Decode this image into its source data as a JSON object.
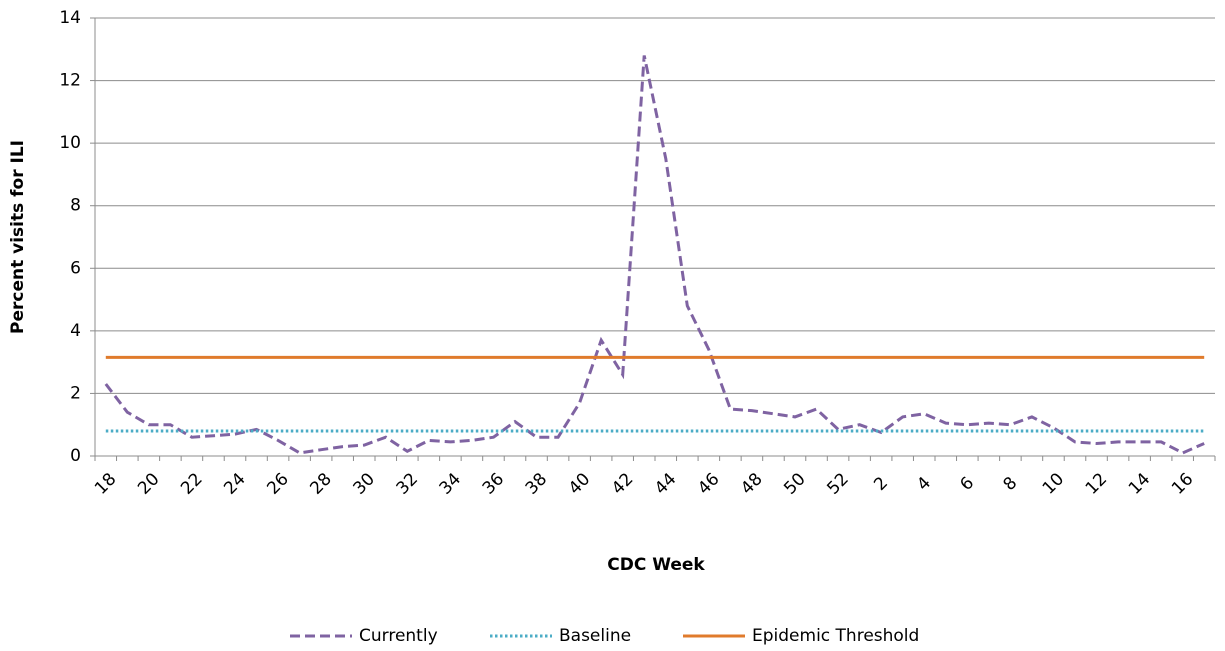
{
  "chart_data": {
    "type": "line",
    "y_label": "Percent visits for ILI",
    "x_label": "CDC Week",
    "categories": [
      "18",
      null,
      "20",
      null,
      "22",
      null,
      "24",
      null,
      "26",
      null,
      "28",
      null,
      "30",
      null,
      "32",
      null,
      "34",
      null,
      "36",
      null,
      "38",
      null,
      "40",
      null,
      "42",
      null,
      "44",
      null,
      "46",
      null,
      "48",
      null,
      "50",
      null,
      "52",
      null,
      "2",
      null,
      "4",
      null,
      "6",
      null,
      "8",
      null,
      "10",
      null,
      "12",
      null,
      "14",
      null,
      "16",
      null
    ],
    "series": [
      {
        "name": "Currently",
        "color": "#7f63a2",
        "style": "dashed",
        "values": [
          2.3,
          1.4,
          1.0,
          1.0,
          0.6,
          0.65,
          0.7,
          0.85,
          0.5,
          0.1,
          0.2,
          0.3,
          0.35,
          0.6,
          0.15,
          0.5,
          0.45,
          0.5,
          0.6,
          1.1,
          0.6,
          0.6,
          1.7,
          3.7,
          2.6,
          12.8,
          9.5,
          4.8,
          3.4,
          1.5,
          1.45,
          1.35,
          1.25,
          1.5,
          0.85,
          1.0,
          0.75,
          1.25,
          1.35,
          1.05,
          1.0,
          1.05,
          1.0,
          1.25,
          0.9,
          0.45,
          0.4,
          0.45,
          0.45,
          0.45,
          0.1,
          0.4
        ]
      },
      {
        "name": "Baseline",
        "color": "#4bacc6",
        "style": "dotted",
        "values": [
          0.8,
          0.8,
          0.8,
          0.8,
          0.8,
          0.8,
          0.8,
          0.8,
          0.8,
          0.8,
          0.8,
          0.8,
          0.8,
          0.8,
          0.8,
          0.8,
          0.8,
          0.8,
          0.8,
          0.8,
          0.8,
          0.8,
          0.8,
          0.8,
          0.8,
          0.8,
          0.8,
          0.8,
          0.8,
          0.8,
          0.8,
          0.8,
          0.8,
          0.8,
          0.8,
          0.8,
          0.8,
          0.8,
          0.8,
          0.8,
          0.8,
          0.8,
          0.8,
          0.8,
          0.8,
          0.8,
          0.8,
          0.8,
          0.8,
          0.8,
          0.8,
          0.8
        ]
      },
      {
        "name": "Epidemic Threshold",
        "color": "#e07b2c",
        "style": "solid",
        "values": [
          3.15,
          3.15,
          3.15,
          3.15,
          3.15,
          3.15,
          3.15,
          3.15,
          3.15,
          3.15,
          3.15,
          3.15,
          3.15,
          3.15,
          3.15,
          3.15,
          3.15,
          3.15,
          3.15,
          3.15,
          3.15,
          3.15,
          3.15,
          3.15,
          3.15,
          3.15,
          3.15,
          3.15,
          3.15,
          3.15,
          3.15,
          3.15,
          3.15,
          3.15,
          3.15,
          3.15,
          3.15,
          3.15,
          3.15,
          3.15,
          3.15,
          3.15,
          3.15,
          3.15,
          3.15,
          3.15,
          3.15,
          3.15,
          3.15,
          3.15,
          3.15,
          3.15
        ]
      }
    ],
    "ylim": [
      0,
      14
    ],
    "yticks": [
      0,
      2,
      4,
      6,
      8,
      10,
      12,
      14
    ],
    "grid": true,
    "legend": "bottom"
  }
}
